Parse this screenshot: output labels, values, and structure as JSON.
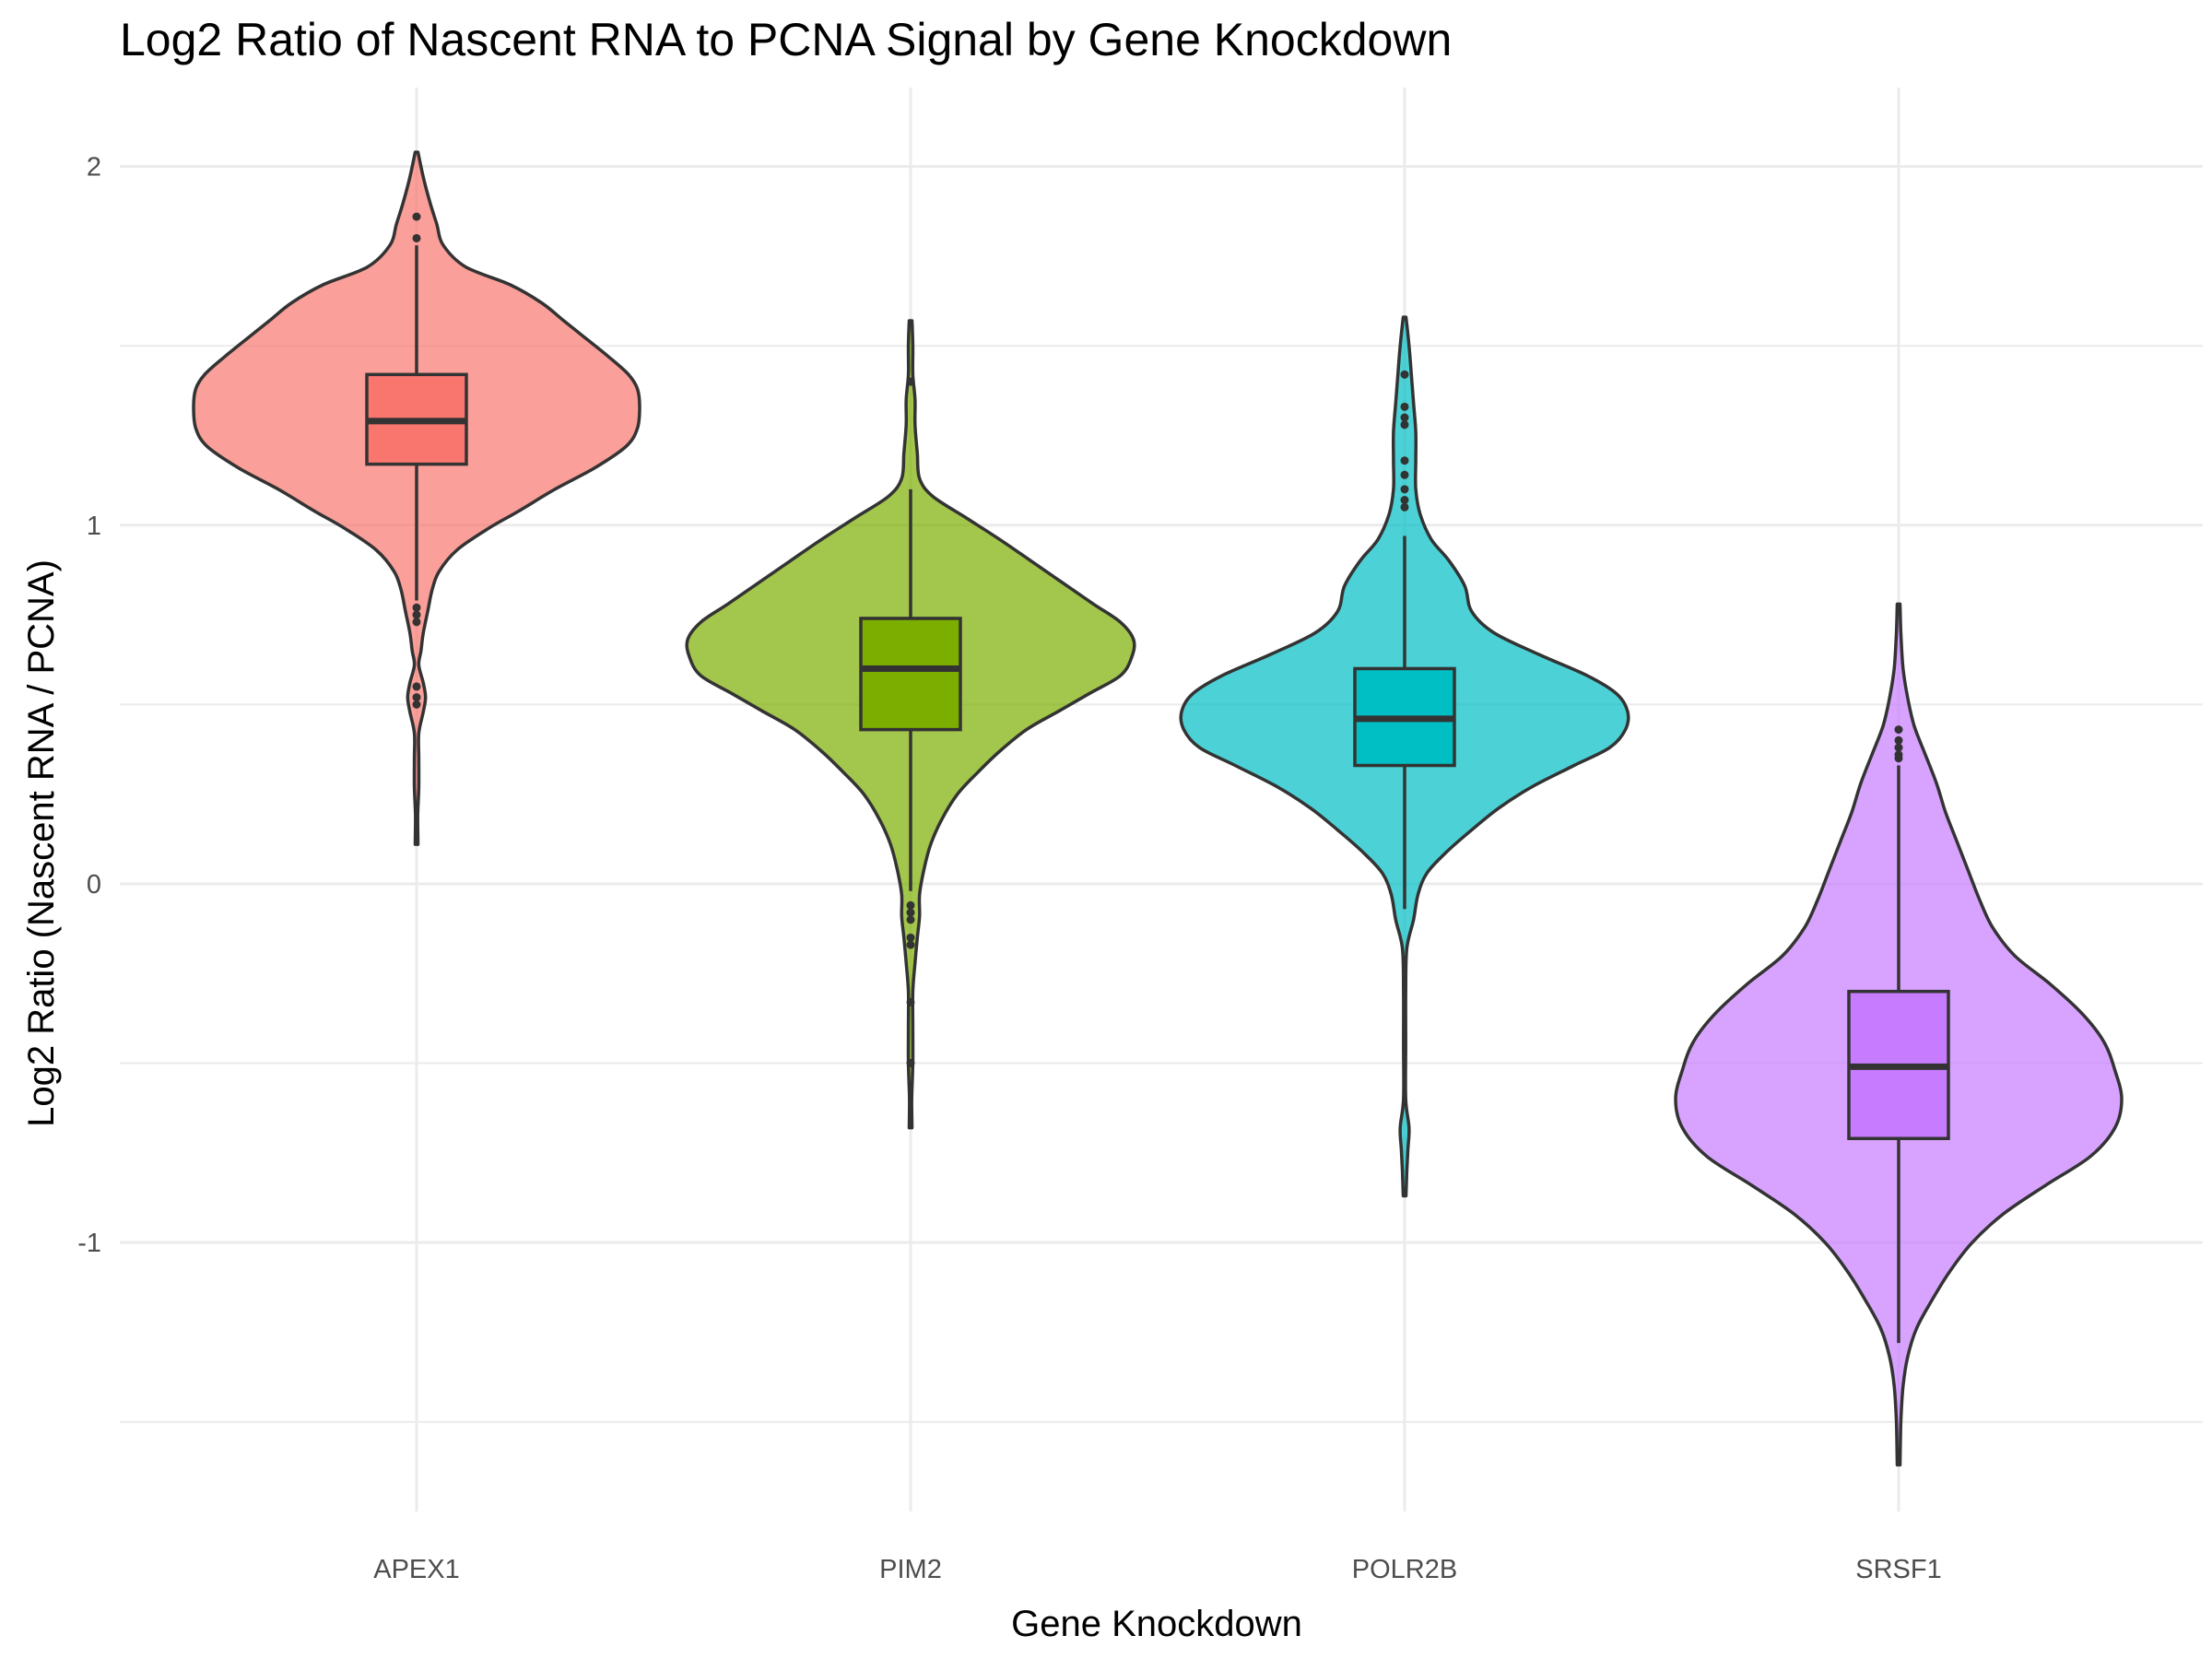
{
  "chart_data": {
    "type": "violin",
    "title": "Log2 Ratio of Nascent RNA to PCNA Signal by Gene Knockdown",
    "xlabel": "Gene Knockdown",
    "ylabel": "Log2 Ratio (Nascent RNA / PCNA)",
    "ylim": [
      -1.75,
      2.22
    ],
    "yticks": [
      2,
      1,
      0,
      -1
    ],
    "ytick_labels": [
      "2",
      "1",
      "0",
      "-1"
    ],
    "grid": true,
    "legend": "none",
    "categories": [
      "APEX1",
      "PIM2",
      "POLR2B",
      "SRSF1"
    ],
    "series": [
      {
        "category": "APEX1",
        "fill": "#F8766D",
        "box": {
          "q1": 1.17,
          "median": 1.29,
          "q3": 1.42,
          "whisker_low": 0.79,
          "whisker_high": 1.78
        },
        "outliers": [
          0.77,
          0.75,
          0.73,
          0.55,
          0.52,
          0.5,
          1.8,
          1.86
        ],
        "density": [
          [
            2.04,
            0.0
          ],
          [
            1.97,
            0.03
          ],
          [
            1.9,
            0.06
          ],
          [
            1.84,
            0.09
          ],
          [
            1.78,
            0.12
          ],
          [
            1.72,
            0.22
          ],
          [
            1.67,
            0.42
          ],
          [
            1.62,
            0.56
          ],
          [
            1.57,
            0.66
          ],
          [
            1.52,
            0.76
          ],
          [
            1.47,
            0.86
          ],
          [
            1.42,
            0.95
          ],
          [
            1.38,
            0.99
          ],
          [
            1.33,
            1.0
          ],
          [
            1.27,
            0.99
          ],
          [
            1.22,
            0.94
          ],
          [
            1.16,
            0.8
          ],
          [
            1.1,
            0.62
          ],
          [
            1.04,
            0.46
          ],
          [
            0.99,
            0.32
          ],
          [
            0.93,
            0.18
          ],
          [
            0.87,
            0.1
          ],
          [
            0.82,
            0.07
          ],
          [
            0.76,
            0.05
          ],
          [
            0.7,
            0.03
          ],
          [
            0.65,
            0.02
          ],
          [
            0.61,
            0.01
          ],
          [
            0.56,
            0.03
          ],
          [
            0.52,
            0.04
          ],
          [
            0.48,
            0.03
          ],
          [
            0.42,
            0.01
          ],
          [
            0.35,
            0.01
          ],
          [
            0.27,
            0.01
          ],
          [
            0.19,
            0.005
          ],
          [
            0.11,
            0.0
          ]
        ]
      },
      {
        "category": "PIM2",
        "fill": "#7CAE00",
        "box": {
          "q1": 0.43,
          "median": 0.6,
          "q3": 0.74,
          "whisker_low": -0.02,
          "whisker_high": 1.1
        },
        "outliers": [
          -0.06,
          -0.08,
          -0.1,
          -0.15,
          -0.17,
          -0.33,
          -0.5,
          1.4
        ],
        "density": [
          [
            1.57,
            0.0
          ],
          [
            1.5,
            0.01
          ],
          [
            1.42,
            0.01
          ],
          [
            1.35,
            0.02
          ],
          [
            1.28,
            0.02
          ],
          [
            1.2,
            0.03
          ],
          [
            1.13,
            0.04
          ],
          [
            1.08,
            0.1
          ],
          [
            1.02,
            0.25
          ],
          [
            0.96,
            0.4
          ],
          [
            0.9,
            0.54
          ],
          [
            0.84,
            0.68
          ],
          [
            0.78,
            0.82
          ],
          [
            0.73,
            0.94
          ],
          [
            0.68,
            1.0
          ],
          [
            0.63,
            0.99
          ],
          [
            0.58,
            0.94
          ],
          [
            0.53,
            0.8
          ],
          [
            0.48,
            0.66
          ],
          [
            0.43,
            0.52
          ],
          [
            0.37,
            0.4
          ],
          [
            0.31,
            0.3
          ],
          [
            0.25,
            0.21
          ],
          [
            0.18,
            0.14
          ],
          [
            0.11,
            0.09
          ],
          [
            0.04,
            0.06
          ],
          [
            -0.03,
            0.04
          ],
          [
            -0.09,
            0.04
          ],
          [
            -0.15,
            0.03
          ],
          [
            -0.22,
            0.02
          ],
          [
            -0.3,
            0.01
          ],
          [
            -0.4,
            0.01
          ],
          [
            -0.5,
            0.01
          ],
          [
            -0.6,
            0.005
          ],
          [
            -0.68,
            0.0
          ]
        ]
      },
      {
        "category": "POLR2B",
        "fill": "#00BFC4",
        "box": {
          "q1": 0.33,
          "median": 0.46,
          "q3": 0.6,
          "whisker_low": -0.07,
          "whisker_high": 0.97
        },
        "outliers": [
          1.05,
          1.07,
          1.1,
          1.14,
          1.18,
          1.28,
          1.3,
          1.33,
          1.42
        ],
        "density": [
          [
            1.58,
            0.0
          ],
          [
            1.5,
            0.02
          ],
          [
            1.42,
            0.03
          ],
          [
            1.34,
            0.04
          ],
          [
            1.26,
            0.05
          ],
          [
            1.18,
            0.05
          ],
          [
            1.1,
            0.05
          ],
          [
            1.03,
            0.07
          ],
          [
            0.96,
            0.12
          ],
          [
            0.9,
            0.2
          ],
          [
            0.83,
            0.27
          ],
          [
            0.76,
            0.3
          ],
          [
            0.7,
            0.4
          ],
          [
            0.64,
            0.6
          ],
          [
            0.58,
            0.82
          ],
          [
            0.53,
            0.95
          ],
          [
            0.48,
            1.0
          ],
          [
            0.43,
            0.99
          ],
          [
            0.38,
            0.92
          ],
          [
            0.33,
            0.76
          ],
          [
            0.27,
            0.57
          ],
          [
            0.21,
            0.42
          ],
          [
            0.15,
            0.3
          ],
          [
            0.09,
            0.19
          ],
          [
            0.03,
            0.1
          ],
          [
            -0.03,
            0.06
          ],
          [
            -0.1,
            0.04
          ],
          [
            -0.18,
            0.01
          ],
          [
            -0.3,
            0.005
          ],
          [
            -0.45,
            0.005
          ],
          [
            -0.6,
            0.005
          ],
          [
            -0.68,
            0.02
          ],
          [
            -0.74,
            0.015
          ],
          [
            -0.8,
            0.01
          ],
          [
            -0.87,
            0.0
          ]
        ]
      },
      {
        "category": "SRSF1",
        "fill": "#C77CFF",
        "box": {
          "q1": -0.71,
          "median": -0.51,
          "q3": -0.3,
          "whisker_low": -1.28,
          "whisker_high": 0.33
        },
        "outliers": [
          0.35,
          0.36,
          0.38,
          0.4,
          0.43
        ],
        "density": [
          [
            0.78,
            0.0
          ],
          [
            0.7,
            0.01
          ],
          [
            0.6,
            0.02
          ],
          [
            0.52,
            0.04
          ],
          [
            0.44,
            0.07
          ],
          [
            0.36,
            0.12
          ],
          [
            0.28,
            0.17
          ],
          [
            0.2,
            0.21
          ],
          [
            0.12,
            0.26
          ],
          [
            0.04,
            0.31
          ],
          [
            -0.04,
            0.36
          ],
          [
            -0.12,
            0.42
          ],
          [
            -0.2,
            0.52
          ],
          [
            -0.28,
            0.68
          ],
          [
            -0.36,
            0.82
          ],
          [
            -0.44,
            0.92
          ],
          [
            -0.52,
            0.97
          ],
          [
            -0.6,
            1.0
          ],
          [
            -0.68,
            0.97
          ],
          [
            -0.76,
            0.86
          ],
          [
            -0.84,
            0.66
          ],
          [
            -0.92,
            0.47
          ],
          [
            -1.0,
            0.33
          ],
          [
            -1.08,
            0.23
          ],
          [
            -1.16,
            0.15
          ],
          [
            -1.24,
            0.08
          ],
          [
            -1.32,
            0.04
          ],
          [
            -1.4,
            0.02
          ],
          [
            -1.5,
            0.01
          ],
          [
            -1.62,
            0.0
          ]
        ]
      }
    ]
  }
}
